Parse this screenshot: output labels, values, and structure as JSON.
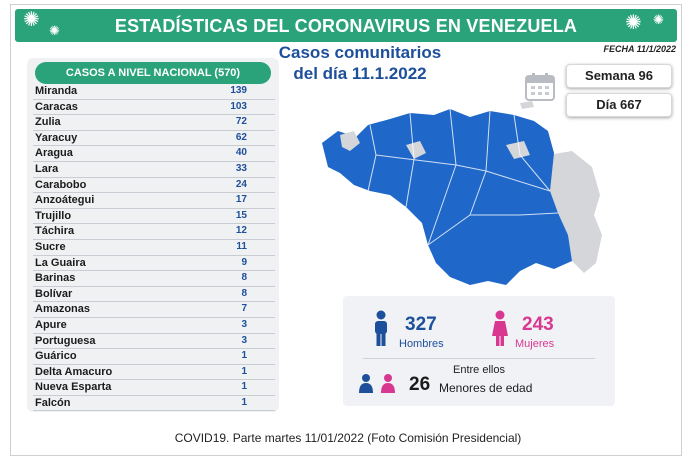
{
  "header": {
    "title": "ESTADÍSTICAS DEL CORONAVIRUS EN VENEZUELA",
    "subtitle_line1": "Casos comunitarios",
    "subtitle_line2": "del día 11.1.2022",
    "fecha": "FECHA 11/1/2022",
    "semana": "Semana 96",
    "dia": "Día 667"
  },
  "table": {
    "header": "CASOS A NIVEL NACIONAL  (570)",
    "rows": [
      {
        "state": "Miranda",
        "cases": "139"
      },
      {
        "state": "Caracas",
        "cases": "103"
      },
      {
        "state": "Zulia",
        "cases": "72"
      },
      {
        "state": "Yaracuy",
        "cases": "62"
      },
      {
        "state": "Aragua",
        "cases": "40"
      },
      {
        "state": "Lara",
        "cases": "33"
      },
      {
        "state": "Carabobo",
        "cases": "24"
      },
      {
        "state": "Anzoátegui",
        "cases": "17"
      },
      {
        "state": "Trujillo",
        "cases": "15"
      },
      {
        "state": "Táchira",
        "cases": "12"
      },
      {
        "state": "Sucre",
        "cases": "11"
      },
      {
        "state": "La Guaira",
        "cases": "9"
      },
      {
        "state": "Barinas",
        "cases": "8"
      },
      {
        "state": "Bolívar",
        "cases": "8"
      },
      {
        "state": "Amazonas",
        "cases": "7"
      },
      {
        "state": "Apure",
        "cases": "3"
      },
      {
        "state": "Portuguesa",
        "cases": "3"
      },
      {
        "state": "Guárico",
        "cases": "1"
      },
      {
        "state": "Delta Amacuro",
        "cases": "1"
      },
      {
        "state": "Nueva Esparta",
        "cases": "1"
      },
      {
        "state": "Falcón",
        "cases": "1"
      }
    ]
  },
  "stats": {
    "men_count": "327",
    "men_label": "Hombres",
    "women_count": "243",
    "women_label": "Mujeres",
    "minors_intro": "Entre ellos",
    "minors_count": "26",
    "minors_label": "Menores de edad"
  },
  "footer": "COVID19. Parte martes 11/01/2022 (Foto Comisión Presidencial)",
  "colors": {
    "green": "#2aa37a",
    "blue": "#1d4f9a",
    "pink": "#d8388f",
    "map_blue": "#1f67c9",
    "map_gray": "#d4d6da"
  }
}
